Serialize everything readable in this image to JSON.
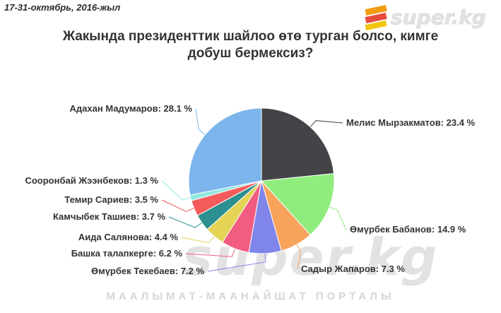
{
  "header": {
    "date": "17-31-октябрь, 2016-жыл",
    "logo_text": "super.kg"
  },
  "watermark": {
    "big": "super.kg",
    "tagline": "МААЛЫМАТ-МААНАЙШАТ ПОРТАЛЫ"
  },
  "chart_data": {
    "type": "pie",
    "title": [
      "Жакында президенттик шайлоо өтө турган болсо, кимге",
      "добуш бермексиз?"
    ],
    "slices": [
      {
        "label": "Мелис Мырзакматов: 23.4 %",
        "value": 23.4,
        "color": "#434348"
      },
      {
        "label": "Өмүрбек Бабанов: 14.9 %",
        "value": 14.9,
        "color": "#90ed7d"
      },
      {
        "label": "Садыр Жапаров: 7.3 %",
        "value": 7.3,
        "color": "#f7a35c"
      },
      {
        "label": "Өмүрбек Текебаев: 7.2 %",
        "value": 7.2,
        "color": "#8085e9"
      },
      {
        "label": "Башка талапкерге: 6.2 %",
        "value": 6.2,
        "color": "#f15c80"
      },
      {
        "label": "Аида Салянова: 4.4 %",
        "value": 4.4,
        "color": "#e4d354"
      },
      {
        "label": "Камчыбек Ташиев: 3.7 %",
        "value": 3.7,
        "color": "#2b908f"
      },
      {
        "label": "Темир Сариев: 3.5 %",
        "value": 3.5,
        "color": "#f45b5b"
      },
      {
        "label": "Сооронбай Жээнбеков: 1.3 %",
        "value": 1.3,
        "color": "#91e8e1"
      },
      {
        "label": "Адахан Мадумаров: 28.1 %",
        "value": 28.1,
        "color": "#7cb5ec"
      }
    ]
  }
}
